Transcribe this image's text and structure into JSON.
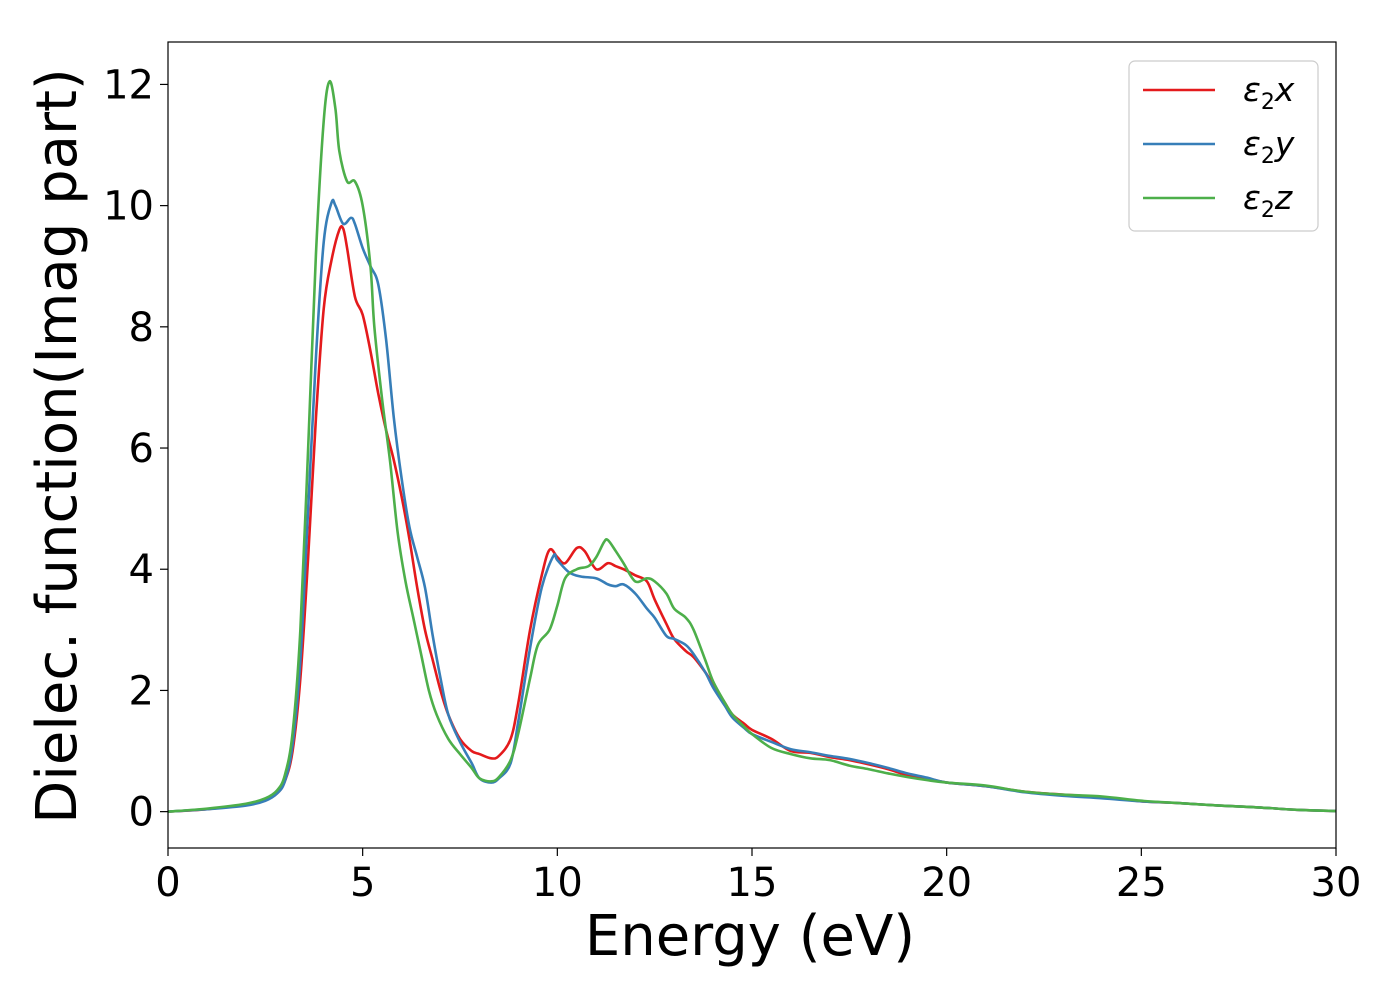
{
  "chart_data": {
    "type": "line",
    "title": "",
    "xlabel": "Energy (eV)",
    "ylabel": "Dielec. function(Imag part)",
    "xlim": [
      0,
      30
    ],
    "ylim": [
      -0.6,
      12.7
    ],
    "xticks": [
      0,
      5,
      10,
      15,
      20,
      25,
      30
    ],
    "yticks": [
      0,
      2,
      4,
      6,
      8,
      10,
      12
    ],
    "grid": false,
    "legend_position": "top-right",
    "legend_labels": [
      {
        "main": "ε",
        "sub": "2",
        "comp": "x"
      },
      {
        "main": "ε",
        "sub": "2",
        "comp": "y"
      },
      {
        "main": "ε",
        "sub": "2",
        "comp": "z"
      }
    ],
    "series": [
      {
        "name": "ε2x",
        "color": "#e41a1c",
        "points": [
          [
            0,
            0
          ],
          [
            1,
            0.04
          ],
          [
            2,
            0.12
          ],
          [
            2.5,
            0.2
          ],
          [
            2.8,
            0.3
          ],
          [
            3.0,
            0.5
          ],
          [
            3.2,
            1.0
          ],
          [
            3.4,
            2.2
          ],
          [
            3.6,
            4.2
          ],
          [
            3.8,
            6.5
          ],
          [
            4.0,
            8.3
          ],
          [
            4.2,
            9.1
          ],
          [
            4.4,
            9.6
          ],
          [
            4.5,
            9.62
          ],
          [
            4.6,
            9.3
          ],
          [
            4.8,
            8.5
          ],
          [
            5.0,
            8.2
          ],
          [
            5.2,
            7.6
          ],
          [
            5.4,
            6.9
          ],
          [
            5.6,
            6.3
          ],
          [
            5.8,
            5.8
          ],
          [
            6.0,
            5.2
          ],
          [
            6.2,
            4.5
          ],
          [
            6.4,
            3.7
          ],
          [
            6.6,
            3.0
          ],
          [
            6.8,
            2.5
          ],
          [
            7.0,
            2.0
          ],
          [
            7.2,
            1.6
          ],
          [
            7.5,
            1.2
          ],
          [
            7.8,
            1.0
          ],
          [
            8.0,
            0.95
          ],
          [
            8.3,
            0.88
          ],
          [
            8.5,
            0.92
          ],
          [
            8.8,
            1.2
          ],
          [
            9.0,
            1.8
          ],
          [
            9.3,
            3.0
          ],
          [
            9.6,
            3.9
          ],
          [
            9.8,
            4.32
          ],
          [
            10.0,
            4.2
          ],
          [
            10.2,
            4.1
          ],
          [
            10.5,
            4.35
          ],
          [
            10.7,
            4.3
          ],
          [
            11.0,
            4.0
          ],
          [
            11.3,
            4.1
          ],
          [
            11.5,
            4.05
          ],
          [
            11.7,
            4.0
          ],
          [
            12.0,
            3.9
          ],
          [
            12.3,
            3.8
          ],
          [
            12.5,
            3.5
          ],
          [
            12.8,
            3.1
          ],
          [
            13.0,
            2.85
          ],
          [
            13.3,
            2.65
          ],
          [
            13.5,
            2.55
          ],
          [
            13.8,
            2.3
          ],
          [
            14.0,
            2.1
          ],
          [
            14.3,
            1.8
          ],
          [
            14.5,
            1.6
          ],
          [
            14.8,
            1.45
          ],
          [
            15.0,
            1.35
          ],
          [
            15.5,
            1.2
          ],
          [
            16.0,
            1.0
          ],
          [
            16.5,
            0.97
          ],
          [
            17.0,
            0.9
          ],
          [
            17.5,
            0.85
          ],
          [
            18.0,
            0.78
          ],
          [
            18.5,
            0.7
          ],
          [
            19.0,
            0.6
          ],
          [
            19.5,
            0.55
          ],
          [
            20.0,
            0.48
          ],
          [
            21.0,
            0.42
          ],
          [
            22.0,
            0.33
          ],
          [
            23.0,
            0.28
          ],
          [
            24.0,
            0.24
          ],
          [
            25.0,
            0.17
          ],
          [
            26.0,
            0.14
          ],
          [
            27.0,
            0.1
          ],
          [
            28.0,
            0.07
          ],
          [
            29.0,
            0.03
          ],
          [
            30.0,
            0.01
          ]
        ]
      },
      {
        "name": "ε2y",
        "color": "#377eb8",
        "points": [
          [
            0,
            0
          ],
          [
            1,
            0.04
          ],
          [
            2,
            0.1
          ],
          [
            2.5,
            0.18
          ],
          [
            2.8,
            0.3
          ],
          [
            3.0,
            0.5
          ],
          [
            3.2,
            1.1
          ],
          [
            3.4,
            2.5
          ],
          [
            3.6,
            5.0
          ],
          [
            3.8,
            7.5
          ],
          [
            4.0,
            9.4
          ],
          [
            4.2,
            10.05
          ],
          [
            4.3,
            10.0
          ],
          [
            4.5,
            9.7
          ],
          [
            4.7,
            9.8
          ],
          [
            4.8,
            9.7
          ],
          [
            5.0,
            9.3
          ],
          [
            5.2,
            9.0
          ],
          [
            5.4,
            8.7
          ],
          [
            5.6,
            7.8
          ],
          [
            5.8,
            6.5
          ],
          [
            6.0,
            5.5
          ],
          [
            6.2,
            4.7
          ],
          [
            6.4,
            4.2
          ],
          [
            6.6,
            3.7
          ],
          [
            6.8,
            2.9
          ],
          [
            7.0,
            2.2
          ],
          [
            7.2,
            1.6
          ],
          [
            7.5,
            1.15
          ],
          [
            7.8,
            0.8
          ],
          [
            8.0,
            0.55
          ],
          [
            8.3,
            0.48
          ],
          [
            8.5,
            0.55
          ],
          [
            8.8,
            0.8
          ],
          [
            9.0,
            1.5
          ],
          [
            9.3,
            2.7
          ],
          [
            9.6,
            3.7
          ],
          [
            9.9,
            4.22
          ],
          [
            10.0,
            4.15
          ],
          [
            10.3,
            3.95
          ],
          [
            10.6,
            3.88
          ],
          [
            11.0,
            3.85
          ],
          [
            11.3,
            3.75
          ],
          [
            11.5,
            3.72
          ],
          [
            11.7,
            3.75
          ],
          [
            12.0,
            3.6
          ],
          [
            12.3,
            3.35
          ],
          [
            12.5,
            3.2
          ],
          [
            12.8,
            2.9
          ],
          [
            13.0,
            2.85
          ],
          [
            13.3,
            2.75
          ],
          [
            13.5,
            2.6
          ],
          [
            13.8,
            2.3
          ],
          [
            14.0,
            2.05
          ],
          [
            14.3,
            1.75
          ],
          [
            14.5,
            1.55
          ],
          [
            14.8,
            1.38
          ],
          [
            15.0,
            1.28
          ],
          [
            15.5,
            1.15
          ],
          [
            16.0,
            1.03
          ],
          [
            16.5,
            0.98
          ],
          [
            17.0,
            0.92
          ],
          [
            17.5,
            0.87
          ],
          [
            18.0,
            0.8
          ],
          [
            18.5,
            0.72
          ],
          [
            19.0,
            0.63
          ],
          [
            19.5,
            0.56
          ],
          [
            20.0,
            0.48
          ],
          [
            21.0,
            0.42
          ],
          [
            22.0,
            0.32
          ],
          [
            23.0,
            0.26
          ],
          [
            24.0,
            0.22
          ],
          [
            25.0,
            0.17
          ],
          [
            26.0,
            0.14
          ],
          [
            27.0,
            0.1
          ],
          [
            28.0,
            0.07
          ],
          [
            29.0,
            0.03
          ],
          [
            30.0,
            0.01
          ]
        ]
      },
      {
        "name": "ε2z",
        "color": "#4daf4a",
        "points": [
          [
            0,
            0
          ],
          [
            1,
            0.05
          ],
          [
            2,
            0.13
          ],
          [
            2.5,
            0.22
          ],
          [
            2.8,
            0.35
          ],
          [
            3.0,
            0.6
          ],
          [
            3.2,
            1.3
          ],
          [
            3.4,
            3.0
          ],
          [
            3.6,
            6.0
          ],
          [
            3.8,
            9.2
          ],
          [
            4.0,
            11.4
          ],
          [
            4.15,
            12.05
          ],
          [
            4.3,
            11.6
          ],
          [
            4.4,
            10.9
          ],
          [
            4.6,
            10.4
          ],
          [
            4.8,
            10.4
          ],
          [
            5.0,
            10.0
          ],
          [
            5.2,
            9.0
          ],
          [
            5.3,
            8.0
          ],
          [
            5.5,
            6.8
          ],
          [
            5.7,
            5.8
          ],
          [
            5.9,
            4.6
          ],
          [
            6.1,
            3.8
          ],
          [
            6.3,
            3.2
          ],
          [
            6.5,
            2.6
          ],
          [
            6.7,
            2.0
          ],
          [
            6.9,
            1.6
          ],
          [
            7.2,
            1.2
          ],
          [
            7.5,
            0.95
          ],
          [
            7.8,
            0.72
          ],
          [
            8.0,
            0.55
          ],
          [
            8.3,
            0.5
          ],
          [
            8.5,
            0.57
          ],
          [
            8.8,
            0.85
          ],
          [
            9.0,
            1.3
          ],
          [
            9.3,
            2.2
          ],
          [
            9.5,
            2.75
          ],
          [
            9.8,
            3.0
          ],
          [
            10.0,
            3.4
          ],
          [
            10.2,
            3.85
          ],
          [
            10.5,
            4.0
          ],
          [
            10.8,
            4.05
          ],
          [
            11.0,
            4.2
          ],
          [
            11.2,
            4.45
          ],
          [
            11.3,
            4.48
          ],
          [
            11.5,
            4.3
          ],
          [
            11.7,
            4.1
          ],
          [
            12.0,
            3.8
          ],
          [
            12.3,
            3.85
          ],
          [
            12.5,
            3.8
          ],
          [
            12.8,
            3.6
          ],
          [
            13.0,
            3.35
          ],
          [
            13.3,
            3.2
          ],
          [
            13.5,
            3.0
          ],
          [
            13.8,
            2.5
          ],
          [
            14.0,
            2.15
          ],
          [
            14.3,
            1.8
          ],
          [
            14.5,
            1.6
          ],
          [
            14.8,
            1.4
          ],
          [
            15.0,
            1.28
          ],
          [
            15.5,
            1.05
          ],
          [
            16.0,
            0.95
          ],
          [
            16.5,
            0.88
          ],
          [
            17.0,
            0.85
          ],
          [
            17.5,
            0.76
          ],
          [
            18.0,
            0.7
          ],
          [
            18.5,
            0.63
          ],
          [
            19.0,
            0.57
          ],
          [
            19.5,
            0.52
          ],
          [
            20.0,
            0.48
          ],
          [
            21.0,
            0.43
          ],
          [
            22.0,
            0.33
          ],
          [
            23.0,
            0.28
          ],
          [
            24.0,
            0.25
          ],
          [
            25.0,
            0.18
          ],
          [
            26.0,
            0.14
          ],
          [
            27.0,
            0.1
          ],
          [
            28.0,
            0.07
          ],
          [
            29.0,
            0.03
          ],
          [
            30.0,
            0.01
          ]
        ]
      }
    ]
  }
}
